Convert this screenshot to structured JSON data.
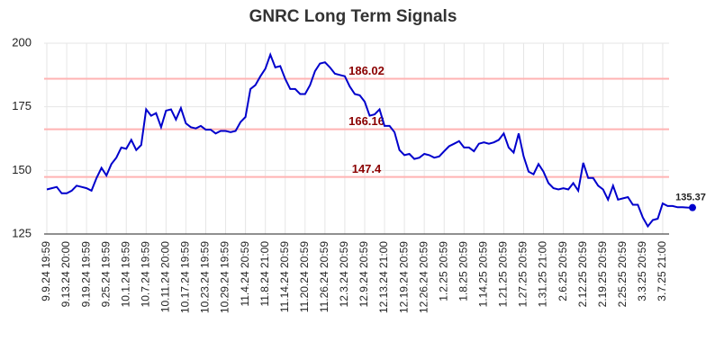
{
  "chart_data": {
    "type": "line",
    "title": "GNRC Long Term Signals",
    "categories": [
      "9.9.24 19:59",
      null,
      null,
      null,
      "9.13.24 20:00",
      null,
      null,
      null,
      "9.19.24 19:59",
      null,
      null,
      null,
      "9.25.24 19:59",
      null,
      null,
      null,
      "10.1.24 19:59",
      null,
      null,
      null,
      "10.7.24 19:59",
      null,
      null,
      null,
      "10.11.24 20:00",
      null,
      null,
      null,
      "10.17.24 19:59",
      null,
      null,
      null,
      "10.23.24 19:59",
      null,
      null,
      null,
      "10.29.24 19:59",
      null,
      null,
      null,
      "11.4.24 20:59",
      null,
      null,
      null,
      "11.8.24 21:00",
      null,
      null,
      null,
      "11.14.24 20:59",
      null,
      null,
      null,
      "11.20.24 20:59",
      null,
      null,
      null,
      "11.26.24 20:59",
      null,
      null,
      null,
      "12.3.24 20:59",
      null,
      null,
      null,
      "12.9.24 20:59",
      null,
      null,
      null,
      "12.13.24 21:00",
      null,
      null,
      null,
      "12.19.24 20:59",
      null,
      null,
      null,
      "12.26.24 20:59",
      null,
      null,
      null,
      "1.2.25 20:59",
      null,
      null,
      null,
      "1.8.25 20:59",
      null,
      null,
      null,
      "1.14.25 20:59",
      null,
      null,
      null,
      "1.21.25 20:59",
      null,
      null,
      null,
      "1.27.25 20:59",
      null,
      null,
      null,
      "1.31.25 21:00",
      null,
      null,
      null,
      "2.6.25 20:59",
      null,
      null,
      null,
      "2.12.25 20:59",
      null,
      null,
      null,
      "2.19.25 20:59",
      null,
      null,
      null,
      "2.25.25 20:59",
      null,
      null,
      null,
      "3.3.25 20:59",
      null,
      null,
      null,
      "3.7.25 21:00",
      null,
      null,
      null,
      null,
      null,
      null
    ],
    "series": [
      {
        "color": "#0000cc",
        "values": [
          142.5,
          143,
          143.5,
          141,
          141,
          142,
          144,
          143.5,
          143,
          142,
          147,
          151,
          148,
          152.5,
          155,
          159,
          158.5,
          162,
          158,
          160,
          174,
          171.5,
          172.5,
          167,
          173.5,
          174,
          170,
          174.5,
          168.5,
          167,
          166.5,
          167.5,
          166,
          166,
          164.5,
          165.5,
          165.5,
          165,
          165.5,
          169,
          171,
          182,
          183.5,
          187,
          190,
          195.5,
          190.5,
          191,
          186,
          182,
          182,
          180,
          180,
          183.5,
          189,
          192,
          192.5,
          190.5,
          188,
          187.5,
          187,
          183,
          180,
          179.5,
          177,
          171.5,
          172,
          174,
          167.5,
          167.5,
          165,
          158,
          156,
          156.5,
          154.5,
          155,
          156.5,
          156,
          155,
          155.5,
          157.5,
          159.5,
          160.5,
          161.5,
          159,
          159,
          157.5,
          160.5,
          161,
          160.5,
          161,
          162,
          164.5,
          159,
          157,
          164.5,
          155.5,
          149.5,
          148.5,
          152.5,
          149.5,
          145,
          143,
          142.5,
          143,
          142.5,
          145,
          142,
          153,
          147,
          147,
          144,
          142.5,
          138.5,
          144,
          138.5,
          139,
          139.5,
          136.5,
          136.5,
          131.5,
          128,
          130.5,
          131,
          137,
          136,
          136,
          135.5,
          135.5,
          135.4,
          135.37
        ]
      }
    ],
    "levels": [
      {
        "value": 186.02,
        "color": "#ffb3b3"
      },
      {
        "value": 166.16,
        "color": "#ffb3b3"
      },
      {
        "value": 147.4,
        "color": "#ffb3b3"
      }
    ],
    "ylim": [
      125,
      200
    ],
    "yticks": [
      125,
      150,
      175,
      200
    ],
    "grid": true
  }
}
